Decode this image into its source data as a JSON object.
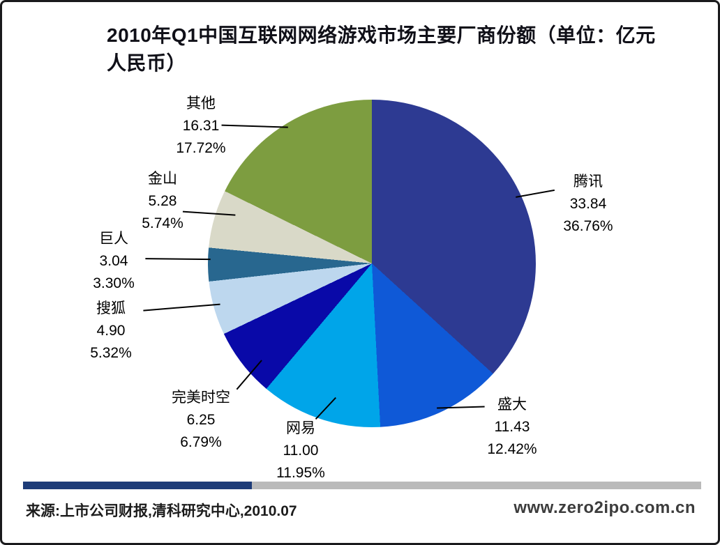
{
  "title": "2010年Q1中国互联网网络游戏市场主要厂商份额（单位：亿元人民币）",
  "footer": {
    "source": "来源:上市公司财报,清科研究中心,2010.07",
    "website": "www.zero2ipo.com.cn"
  },
  "divider": {
    "left_color": "#1e3c78",
    "right_color": "#bababa"
  },
  "chart_data": {
    "type": "pie",
    "title": "2010年Q1中国互联网网络游戏市场主要厂商份额（单位：亿元人民币）",
    "unit": "亿元人民币",
    "start_angle_deg": 0,
    "direction": "clockwise",
    "legend_position": "outside-labels-with-leader-lines",
    "label_format": "name / value / percent",
    "slices": [
      {
        "label": "腾讯",
        "value": 33.84,
        "percent": 36.76,
        "value_text": "33.84",
        "percent_text": "36.76%",
        "color": "#2d3a92"
      },
      {
        "label": "盛大",
        "value": 11.43,
        "percent": 12.42,
        "value_text": "11.43",
        "percent_text": "12.42%",
        "color": "#0f59d7"
      },
      {
        "label": "网易",
        "value": 11.0,
        "percent": 11.95,
        "value_text": "11.00",
        "percent_text": "11.95%",
        "color": "#00a5e9"
      },
      {
        "label": "完美时空",
        "value": 6.25,
        "percent": 6.79,
        "value_text": "6.25",
        "percent_text": "6.79%",
        "color": "#0909a8"
      },
      {
        "label": "搜狐",
        "value": 4.9,
        "percent": 5.32,
        "value_text": "4.90",
        "percent_text": "5.32%",
        "color": "#bdd7ee"
      },
      {
        "label": "巨人",
        "value": 3.04,
        "percent": 3.3,
        "value_text": "3.04",
        "percent_text": "3.30%",
        "color": "#28678f"
      },
      {
        "label": "金山",
        "value": 5.28,
        "percent": 5.74,
        "value_text": "5.28",
        "percent_text": "5.74%",
        "color": "#d9d9c8"
      },
      {
        "label": "其他",
        "value": 16.31,
        "percent": 17.72,
        "value_text": "16.31",
        "percent_text": "17.72%",
        "color": "#7d9d40"
      }
    ]
  }
}
